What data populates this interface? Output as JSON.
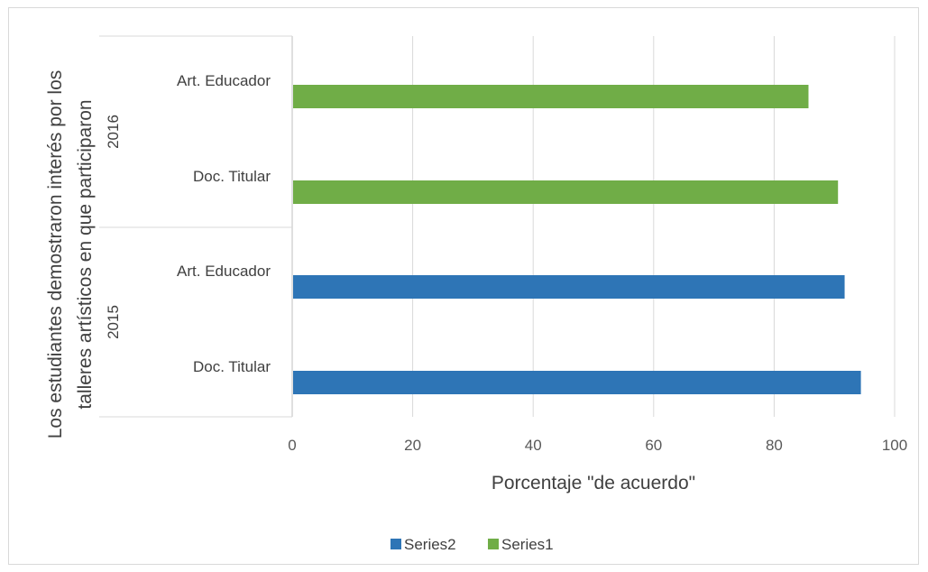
{
  "chart_data": {
    "type": "bar",
    "orientation": "horizontal",
    "xlabel": "Porcentaje \"de acuerdo\"",
    "ylabel": "Los estudiantes demostraron interés por los talleres artísticos en que participaron",
    "xlim": [
      0,
      100
    ],
    "xticks": [
      0,
      20,
      40,
      60,
      80,
      100
    ],
    "grid": true,
    "legend_position": "bottom",
    "groups": [
      {
        "label": "2016",
        "categories": [
          "Art. Educador",
          "Doc. Titular"
        ]
      },
      {
        "label": "2015",
        "categories": [
          "Art. Educador",
          "Doc. Titular"
        ]
      }
    ],
    "series": [
      {
        "name": "Series2",
        "color": "#2e75b6",
        "group": "2015",
        "values": {
          "Art. Educador": 91.7,
          "Doc. Titular": 94.4
        }
      },
      {
        "name": "Series1",
        "color": "#70ad47",
        "group": "2016",
        "values": {
          "Art. Educador": 85.7,
          "Doc. Titular": 90.6
        }
      }
    ],
    "legend": [
      "Series2",
      "Series1"
    ]
  }
}
